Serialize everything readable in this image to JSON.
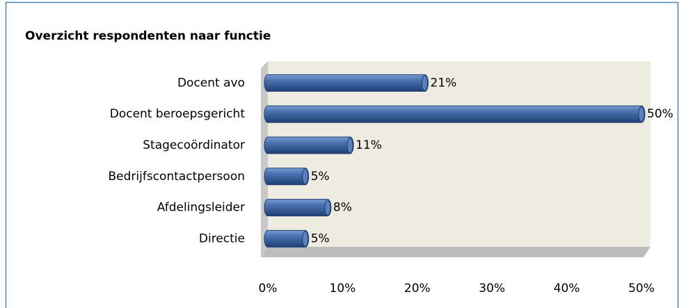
{
  "chart_data": {
    "type": "bar",
    "orientation": "horizontal",
    "title": "Overzicht respondenten naar functie",
    "categories": [
      "Docent avo",
      "Docent beroepsgericht",
      "Stagecoördinator",
      "Bedrijfscontactpersoon",
      "Afdelingsleider",
      "Directie"
    ],
    "values": [
      21,
      50,
      11,
      5,
      8,
      5
    ],
    "value_labels": [
      "21%",
      "50%",
      "11%",
      "5%",
      "8%",
      "5%"
    ],
    "color": "#3d65a0",
    "xlim": [
      0,
      50
    ],
    "xticks": [
      {
        "value": 0,
        "label": "0%"
      },
      {
        "value": 10,
        "label": "10%"
      },
      {
        "value": 20,
        "label": "20%"
      },
      {
        "value": 30,
        "label": "30%"
      },
      {
        "value": 40,
        "label": "40%"
      },
      {
        "value": 50,
        "label": "50%"
      }
    ],
    "grid": false
  }
}
